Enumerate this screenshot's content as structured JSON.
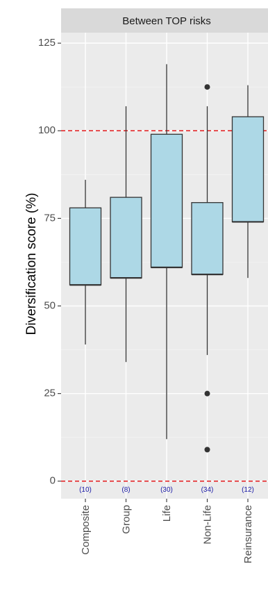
{
  "chart_data": {
    "type": "boxplot",
    "facet_title": "Between TOP risks",
    "ylabel": "Diversification score (%)",
    "xlabel": "",
    "ylim": [
      -5,
      128
    ],
    "yticks": [
      0,
      25,
      50,
      75,
      100,
      125
    ],
    "ytick_labels": [
      "0",
      "25",
      "50",
      "75",
      "100",
      "125"
    ],
    "reference_lines": [
      0,
      100
    ],
    "reference_line_color": "#e41a1c",
    "box_fill": "#add8e6",
    "panel_background": "#ebebeb",
    "strip_background": "#d9d9d9",
    "categories": [
      "Composite",
      "Group",
      "Life",
      "Non-Life",
      "Reinsurance"
    ],
    "counts": [
      "(10)",
      "(8)",
      "(30)",
      "(34)",
      "(12)"
    ],
    "boxes": [
      {
        "category": "Composite",
        "q1": 56,
        "median": 56,
        "q3": 78,
        "whisker_low": 39,
        "whisker_high": 86,
        "outliers": []
      },
      {
        "category": "Group",
        "q1": 58,
        "median": 58,
        "q3": 81,
        "whisker_low": 34,
        "whisker_high": 107,
        "outliers": []
      },
      {
        "category": "Life",
        "q1": 61,
        "median": 61,
        "q3": 99,
        "whisker_low": 12,
        "whisker_high": 119,
        "outliers": []
      },
      {
        "category": "Non-Life",
        "q1": 59,
        "median": 59,
        "q3": 79.5,
        "whisker_low": 36,
        "whisker_high": 107,
        "outliers": [
          112.5,
          25,
          9
        ]
      },
      {
        "category": "Reinsurance",
        "q1": 74,
        "median": 74,
        "q3": 104,
        "whisker_low": 58,
        "whisker_high": 113,
        "outliers": []
      }
    ],
    "grid": true,
    "legend": "none"
  }
}
